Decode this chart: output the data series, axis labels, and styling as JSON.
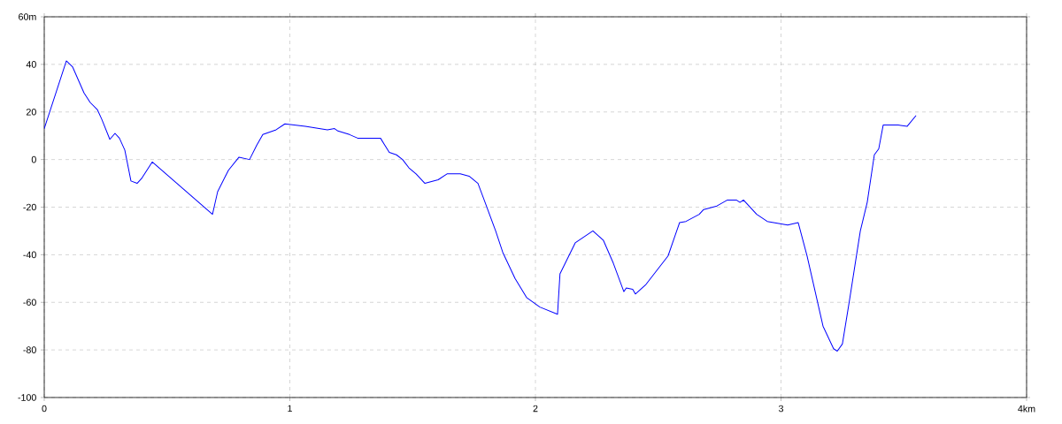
{
  "chart_data": {
    "type": "line",
    "x": [
      0,
      0.09,
      0.115,
      0.162,
      0.187,
      0.216,
      0.234,
      0.267,
      0.288,
      0.306,
      0.328,
      0.353,
      0.378,
      0.396,
      0.44,
      0.685,
      0.706,
      0.75,
      0.793,
      0.836,
      0.865,
      0.89,
      0.944,
      0.98,
      1.063,
      1.153,
      1.182,
      1.196,
      1.243,
      1.276,
      1.369,
      1.387,
      1.405,
      1.434,
      1.459,
      1.485,
      1.514,
      1.55,
      1.604,
      1.64,
      1.694,
      1.73,
      1.766,
      1.795,
      1.838,
      1.867,
      1.917,
      1.964,
      2.018,
      2.054,
      2.09,
      2.1,
      2.162,
      2.234,
      2.277,
      2.317,
      2.36,
      2.37,
      2.396,
      2.407,
      2.45,
      2.54,
      2.587,
      2.613,
      2.667,
      2.685,
      2.739,
      2.782,
      2.818,
      2.833,
      2.847,
      2.901,
      2.944,
      3.027,
      3.07,
      3.106,
      3.171,
      3.214,
      3.229,
      3.25,
      3.279,
      3.323,
      3.351,
      3.38,
      3.398,
      3.416,
      3.477,
      3.514,
      3.55
    ],
    "series": [
      {
        "color": "#0000ff",
        "values": [
          13,
          41.5,
          39,
          28,
          24,
          21,
          17,
          8.5,
          11,
          9,
          4,
          -9,
          -10,
          -8,
          -1,
          -23,
          -13.5,
          -4.5,
          1,
          0,
          6,
          10.5,
          12.5,
          15,
          14,
          12.5,
          13,
          12,
          10.5,
          9,
          9,
          6,
          3,
          2,
          0,
          -3.5,
          -6,
          -10,
          -8.5,
          -6,
          -6,
          -7,
          -10,
          -18,
          -30,
          -39,
          -50,
          -58,
          -62,
          -63.5,
          -65,
          -48,
          -35,
          -30,
          -34,
          -43.5,
          -55.5,
          -54,
          -54.5,
          -56.5,
          -52.5,
          -40.5,
          -26.5,
          -26,
          -23,
          -21,
          -19.5,
          -17,
          -17,
          -18,
          -17,
          -23,
          -26,
          -27.5,
          -26.5,
          -40.5,
          -70,
          -79.5,
          -80.5,
          -77.5,
          -59,
          -30,
          -18,
          2,
          4.5,
          14.5,
          14.5,
          14,
          18.5
        ]
      }
    ],
    "xlim": [
      0,
      4
    ],
    "xticks": [
      0,
      1,
      2,
      3,
      {
        "value": 4,
        "label": "4km"
      }
    ],
    "ylim": [
      -100,
      60
    ],
    "yticks": [
      -100,
      -80,
      -60,
      -40,
      -20,
      0,
      20,
      40,
      {
        "value": 60,
        "label": "60m"
      }
    ],
    "grid": true,
    "marker": "none",
    "line_style": "solid"
  }
}
